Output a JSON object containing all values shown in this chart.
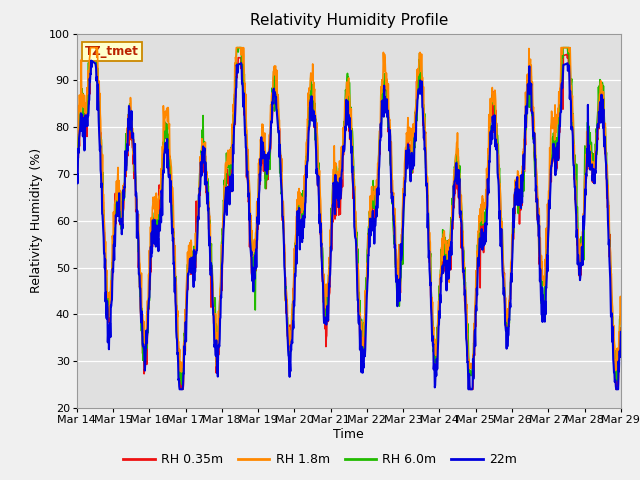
{
  "title": "Relativity Humidity Profile",
  "ylabel": "Relativity Humidity (%)",
  "xlabel": "Time",
  "ylim": [
    20,
    100
  ],
  "yticks": [
    20,
    30,
    40,
    50,
    60,
    70,
    80,
    90,
    100
  ],
  "x_labels": [
    "Mar 14",
    "Mar 15",
    "Mar 16",
    "Mar 17",
    "Mar 18",
    "Mar 19",
    "Mar 20",
    "Mar 21",
    "Mar 22",
    "Mar 23",
    "Mar 24",
    "Mar 25",
    "Mar 26",
    "Mar 27",
    "Mar 28",
    "Mar 29"
  ],
  "colors": {
    "RH 0.35m": "#ee1111",
    "RH 1.8m": "#ff8800",
    "RH 6.0m": "#22bb00",
    "22m": "#0000dd"
  },
  "legend_label": "TZ_tmet",
  "bg_color": "#e0e0e0",
  "fig_color": "#f0f0f0",
  "title_fontsize": 11,
  "axis_fontsize": 9,
  "tick_fontsize": 8,
  "legend_fontsize": 9,
  "linewidth": 1.2
}
